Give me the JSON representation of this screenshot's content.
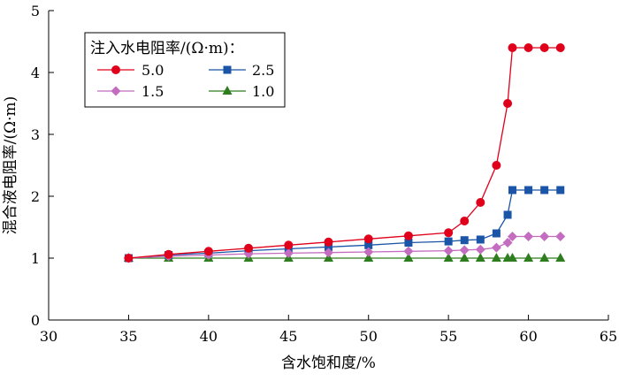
{
  "chart_data": {
    "type": "line",
    "xlabel": "含水饱和度/%",
    "ylabel": "混合液电阻率/(Ω·m)",
    "xlim": [
      30,
      65
    ],
    "ylim": [
      0,
      5
    ],
    "xticks": [
      30,
      35,
      40,
      45,
      50,
      55,
      60,
      65
    ],
    "yticks": [
      0,
      1,
      2,
      3,
      4,
      5
    ],
    "legend": {
      "title": "注入水电阻率/(Ω·m)：",
      "placement": "top-left",
      "columns": 2
    },
    "series": [
      {
        "name": "5.0",
        "color": "#e0001b",
        "marker": "circle",
        "x": [
          35,
          37.5,
          40,
          42.5,
          45,
          47.5,
          50,
          52.5,
          55,
          56,
          57,
          58,
          58.7,
          59,
          60,
          61,
          62
        ],
        "y": [
          1.0,
          1.06,
          1.11,
          1.16,
          1.21,
          1.26,
          1.31,
          1.36,
          1.41,
          1.6,
          1.9,
          2.5,
          3.5,
          4.4,
          4.4,
          4.4,
          4.4
        ]
      },
      {
        "name": "1.5",
        "color": "#c46cbf",
        "marker": "diamond",
        "x": [
          35,
          37.5,
          40,
          42.5,
          45,
          47.5,
          50,
          52.5,
          55,
          56,
          57,
          58,
          58.7,
          59,
          60,
          61,
          62
        ],
        "y": [
          1.0,
          1.03,
          1.05,
          1.07,
          1.08,
          1.09,
          1.1,
          1.11,
          1.12,
          1.13,
          1.14,
          1.17,
          1.25,
          1.35,
          1.35,
          1.35,
          1.35
        ]
      },
      {
        "name": "2.5",
        "color": "#1a55a8",
        "marker": "square",
        "x": [
          35,
          37.5,
          40,
          42.5,
          45,
          47.5,
          50,
          52.5,
          55,
          56,
          57,
          58,
          58.7,
          59,
          60,
          61,
          62
        ],
        "y": [
          1.0,
          1.05,
          1.08,
          1.12,
          1.15,
          1.18,
          1.21,
          1.25,
          1.27,
          1.29,
          1.3,
          1.4,
          1.7,
          2.1,
          2.1,
          2.1,
          2.1
        ]
      },
      {
        "name": "1.0",
        "color": "#2e7d1f",
        "marker": "triangle",
        "x": [
          35,
          37.5,
          40,
          42.5,
          45,
          47.5,
          50,
          52.5,
          55,
          56,
          57,
          58,
          58.7,
          59,
          60,
          61,
          62
        ],
        "y": [
          1.0,
          1.0,
          1.0,
          1.0,
          1.0,
          1.0,
          1.0,
          1.0,
          1.0,
          1.0,
          1.0,
          1.0,
          1.0,
          1.0,
          1.0,
          1.0,
          1.0
        ]
      }
    ]
  }
}
